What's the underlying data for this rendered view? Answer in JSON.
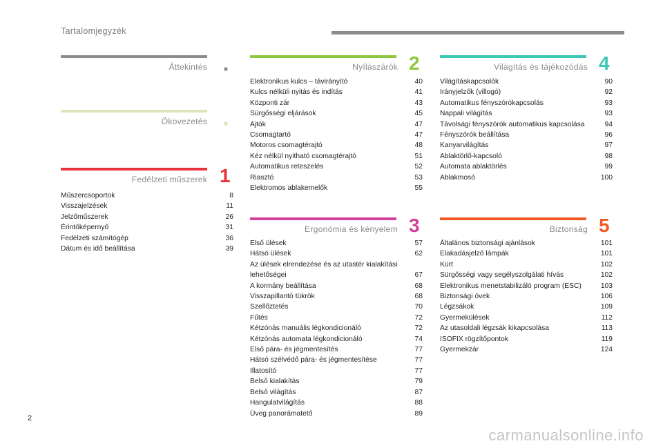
{
  "header": {
    "title": "Tartalomjegyzék"
  },
  "footer": {
    "page_number": "2",
    "watermark": "carmanualsonline.info"
  },
  "sections": {
    "attekintes": {
      "title": "Áttekintés",
      "color": "#8c8c8c",
      "marker": "■"
    },
    "okovezetes": {
      "title": "Ökovezetés",
      "color": "#dfe3bd",
      "marker": "■"
    },
    "fedelzeti": {
      "title": "Fedélzeti műszerek",
      "number": "1",
      "color": "#e8333c",
      "entries": [
        {
          "title": "Műszercsoportok",
          "page": "8"
        },
        {
          "title": "Visszajelzések",
          "page": "11"
        },
        {
          "title": "Jelzőműszerek",
          "page": "26"
        },
        {
          "title": "Érintőképernyő",
          "page": "31"
        },
        {
          "title": "Fedélzeti számítógép",
          "page": "36"
        },
        {
          "title": "Dátum és idő beállítása",
          "page": "39"
        }
      ]
    },
    "nyilaszarok": {
      "title": "Nyílászárók",
      "number": "2",
      "color": "#8dc63f",
      "entries": [
        {
          "title": "Elektronikus kulcs – távirányító",
          "page": "40"
        },
        {
          "title": "Kulcs nélküli nyitás és indítás",
          "page": "41"
        },
        {
          "title": "Központi zár",
          "page": "43"
        },
        {
          "title": "Sürgősségi eljárások",
          "page": "45"
        },
        {
          "title": "Ajtók",
          "page": "47"
        },
        {
          "title": "Csomagtartó",
          "page": "47"
        },
        {
          "title": "Motoros csomagtérajtó",
          "page": "48"
        },
        {
          "title": "Kéz nélkül nyitható csomagtérajtó",
          "page": "51"
        },
        {
          "title": "Automatikus reteszelés",
          "page": "52"
        },
        {
          "title": "Riasztó",
          "page": "53"
        },
        {
          "title": "Elektromos ablakemelők",
          "page": "55"
        }
      ]
    },
    "ergonomia": {
      "title": "Ergonómia és kényelem",
      "number": "3",
      "color": "#d33f9a",
      "entries": [
        {
          "title": "Első ülések",
          "page": "57"
        },
        {
          "title": "Hátsó ülések",
          "page": "62"
        },
        {
          "title": "Az ülések elrendezése és az utastér kialakítási lehetőségei",
          "page": "67"
        },
        {
          "title": "A kormány beállítása",
          "page": "68"
        },
        {
          "title": "Visszapillantó tükrök",
          "page": "68"
        },
        {
          "title": "Szellőztetés",
          "page": "70"
        },
        {
          "title": "Fűtés",
          "page": "72"
        },
        {
          "title": "Kétzónás manuális légkondicionáló",
          "page": "72"
        },
        {
          "title": "Kétzónás automata légkondicionáló",
          "page": "74"
        },
        {
          "title": "Első pára- és jégmentesítés",
          "page": "77"
        },
        {
          "title": "Hátsó szélvédő pára- és jégmentesítése",
          "page": "77"
        },
        {
          "title": "Illatosító",
          "page": "77"
        },
        {
          "title": "Belső kialakítás",
          "page": "79"
        },
        {
          "title": "Belső világítás",
          "page": "87"
        },
        {
          "title": "Hangulatvilágítás",
          "page": "88"
        },
        {
          "title": "Üveg panorámatető",
          "page": "89"
        }
      ]
    },
    "vilagitas": {
      "title": "Világítás és tájékozódás",
      "number": "4",
      "color": "#3cc8b4",
      "entries": [
        {
          "title": "Világításkapcsolók",
          "page": "90"
        },
        {
          "title": "Irányjelzők (villogó)",
          "page": "92"
        },
        {
          "title": "Automatikus fényszórókapcsolás",
          "page": "93"
        },
        {
          "title": "Nappali világítás",
          "page": "93"
        },
        {
          "title": "Távolsági fényszórók automatikus kapcsolása",
          "page": "94"
        },
        {
          "title": "Fényszórók beállítása",
          "page": "96"
        },
        {
          "title": "Kanyarvilágítás",
          "page": "97"
        },
        {
          "title": "Ablaktörlő-kapcsoló",
          "page": "98"
        },
        {
          "title": "Automata ablaktörlés",
          "page": "99"
        },
        {
          "title": "Ablakmosó",
          "page": "100"
        }
      ]
    },
    "biztonsag": {
      "title": "Biztonság",
      "number": "5",
      "color": "#f15a24",
      "entries": [
        {
          "title": "Általános biztonsági ajánlások",
          "page": "101"
        },
        {
          "title": "Elakadásjelző lámpák",
          "page": "101"
        },
        {
          "title": "Kürt",
          "page": "102"
        },
        {
          "title": "Sürgősségi vagy segélyszolgálati hívás",
          "page": "102"
        },
        {
          "title": "Elektronikus menetstabilizáló program (ESC)",
          "page": "103"
        },
        {
          "title": "Biztonsági övek",
          "page": "106"
        },
        {
          "title": "Légzsákok",
          "page": "109"
        },
        {
          "title": "Gyermekülések",
          "page": "112"
        },
        {
          "title": "Az utasoldali légzsák kikapcsolása",
          "page": "113"
        },
        {
          "title": "ISOFIX rögzítőpontok",
          "page": "119"
        },
        {
          "title": "Gyermekzár",
          "page": "124"
        }
      ]
    }
  }
}
